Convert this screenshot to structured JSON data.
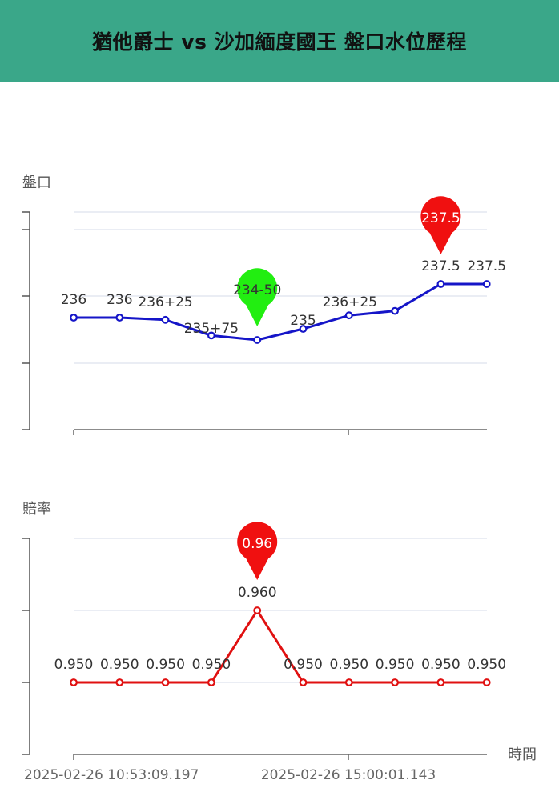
{
  "header": {
    "title": "猶他爵士 vs 沙加緬度國王 盤口水位歷程"
  },
  "colors": {
    "header_bg": "#3aa789",
    "line_handicap": "#1515c8",
    "line_odds": "#e01010",
    "pin_red": "#f01010",
    "pin_green": "#22ee11"
  },
  "chart_data": [
    {
      "type": "line",
      "ylabel": "盤口",
      "x": [
        "1",
        "2",
        "3",
        "4",
        "5",
        "6",
        "7",
        "8",
        "9",
        "10"
      ],
      "series": [
        {
          "values": [
            236,
            236,
            235.9,
            235.2,
            235.0,
            235.5,
            236.1,
            236.3,
            237.5,
            237.5
          ]
        }
      ],
      "point_labels": [
        "236",
        "236",
        "236+25",
        "235+75",
        "",
        "235",
        "236+25",
        "",
        "237.5",
        "237.5"
      ],
      "markers": [
        {
          "index": 4,
          "text": "234-50",
          "color": "green"
        },
        {
          "index": 8,
          "text": "237.5",
          "color": "red"
        }
      ]
    },
    {
      "type": "line",
      "ylabel": "賠率",
      "xlabel": "時間",
      "x": [
        "1",
        "2",
        "3",
        "4",
        "5",
        "6",
        "7",
        "8",
        "9",
        "10"
      ],
      "x_tick_labels": [
        "2025-02-26 10:53:09.197",
        "2025-02-26 15:00:01.143"
      ],
      "series": [
        {
          "values": [
            0.95,
            0.95,
            0.95,
            0.95,
            0.96,
            0.95,
            0.95,
            0.95,
            0.95,
            0.95
          ]
        }
      ],
      "point_labels": [
        "0.950",
        "0.950",
        "0.950",
        "0.950",
        "0.960",
        "0.950",
        "0.950",
        "0.950",
        "0.950",
        "0.950"
      ],
      "markers": [
        {
          "index": 4,
          "text": "0.96",
          "color": "red"
        }
      ]
    }
  ]
}
